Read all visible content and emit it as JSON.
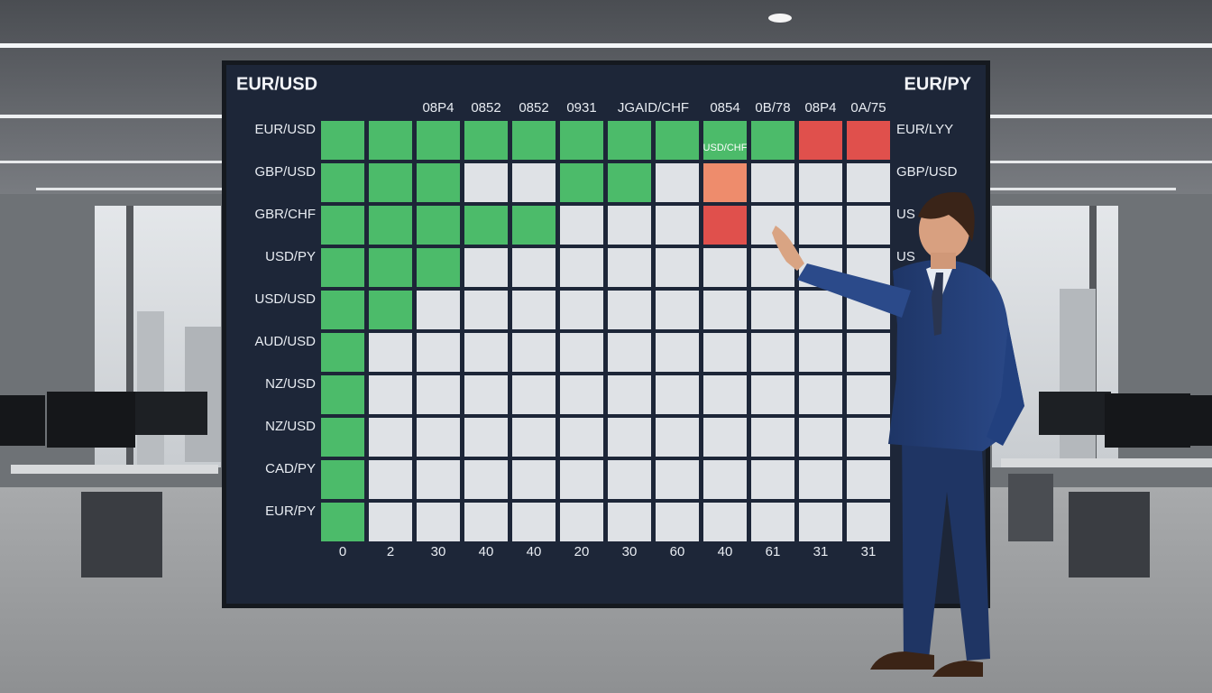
{
  "screen": {
    "title_left": "EUR/USD",
    "title_right": "EUR/PY",
    "column_headers": [
      "08P4",
      "0852",
      "0852",
      "0931",
      "JGAID/CHF",
      "0854",
      "0B/78",
      "08P4",
      "0A/75"
    ],
    "row_labels": [
      "EUR/USD",
      "GBP/USD",
      "GBR/CHF",
      "USD/PY",
      "USD/USD",
      "AUD/USD",
      "NZ/USD",
      "NZ/USD",
      "CAD/PY",
      "EUR/PY"
    ],
    "right_labels": [
      "EUR/LYY",
      "GBP/USD",
      "US",
      "US"
    ],
    "cell_label": "USD/CHF",
    "bottom_labels": [
      0,
      2,
      30,
      40,
      40,
      20,
      30,
      60,
      40,
      61,
      31,
      31
    ]
  }
}
